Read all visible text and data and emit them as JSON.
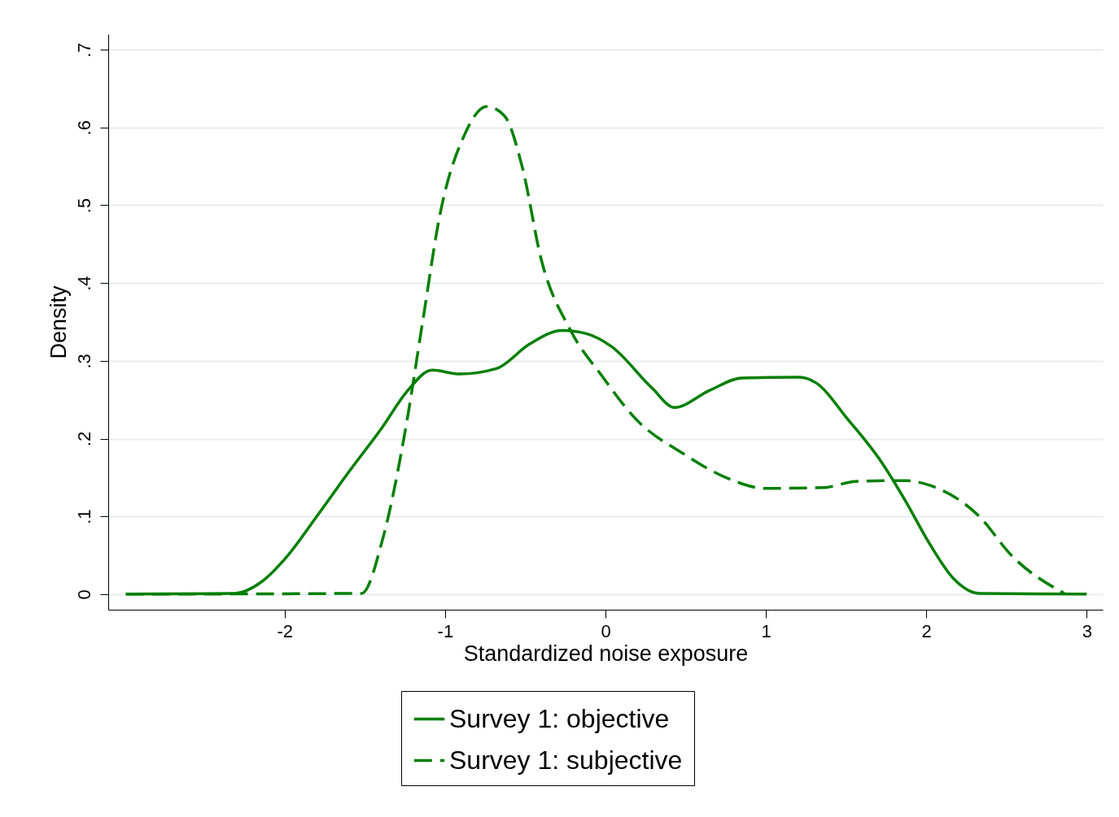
{
  "chart_data": {
    "type": "line",
    "xlabel": "Standardized noise exposure",
    "ylabel": "Density",
    "xlim": [
      -3.1,
      3.1
    ],
    "xticks": [
      -2,
      -1,
      0,
      1,
      2,
      3
    ],
    "ylim": [
      -0.02,
      0.72
    ],
    "yticks": [
      0,
      {
        "value": 0.1,
        "label": ".1"
      },
      {
        "value": 0.2,
        "label": ".2"
      },
      {
        "value": 0.3,
        "label": ".3"
      },
      {
        "value": 0.4,
        "label": ".4"
      },
      {
        "value": 0.5,
        "label": ".5"
      },
      {
        "value": 0.6,
        "label": ".6"
      },
      {
        "value": 0.7,
        "label": ".7"
      }
    ],
    "grid": "y",
    "legend": "bottom",
    "series": [
      {
        "name": "Survey 1: objective",
        "color": "#007f00",
        "line_style": "solid",
        "x": [
          -2.99,
          -2.31,
          -2.15,
          -2.0,
          -1.8,
          -1.59,
          -1.39,
          -1.24,
          -1.08,
          -0.91,
          -0.68,
          -0.47,
          -0.27,
          -0.12,
          0.04,
          0.29,
          0.43,
          0.65,
          0.85,
          1.21,
          1.31,
          1.51,
          1.72,
          1.87,
          2.02,
          2.17,
          2.33,
          3.0
        ],
        "values": [
          0,
          0.001,
          0.015,
          0.045,
          0.1,
          0.16,
          0.215,
          0.26,
          0.288,
          0.283,
          0.29,
          0.322,
          0.339,
          0.335,
          0.318,
          0.265,
          0.24,
          0.262,
          0.278,
          0.279,
          0.272,
          0.225,
          0.17,
          0.12,
          0.065,
          0.02,
          0.001,
          0
        ]
      },
      {
        "name": "Survey 1: subjective",
        "color": "#007f00",
        "line_style": "dashed",
        "x": [
          -2.99,
          -1.52,
          -1.39,
          -1.24,
          -1.14,
          -1.03,
          -0.88,
          -0.74,
          -0.63,
          -0.52,
          -0.4,
          -0.22,
          -0.02,
          0.19,
          0.49,
          0.75,
          1.0,
          1.36,
          1.56,
          1.87,
          2.02,
          2.33,
          2.53,
          2.86
        ],
        "values": [
          0,
          0.001,
          0.07,
          0.22,
          0.35,
          0.49,
          0.59,
          0.627,
          0.615,
          0.55,
          0.43,
          0.34,
          0.28,
          0.225,
          0.18,
          0.15,
          0.136,
          0.137,
          0.145,
          0.146,
          0.14,
          0.1,
          0.05,
          0.001
        ]
      }
    ]
  }
}
